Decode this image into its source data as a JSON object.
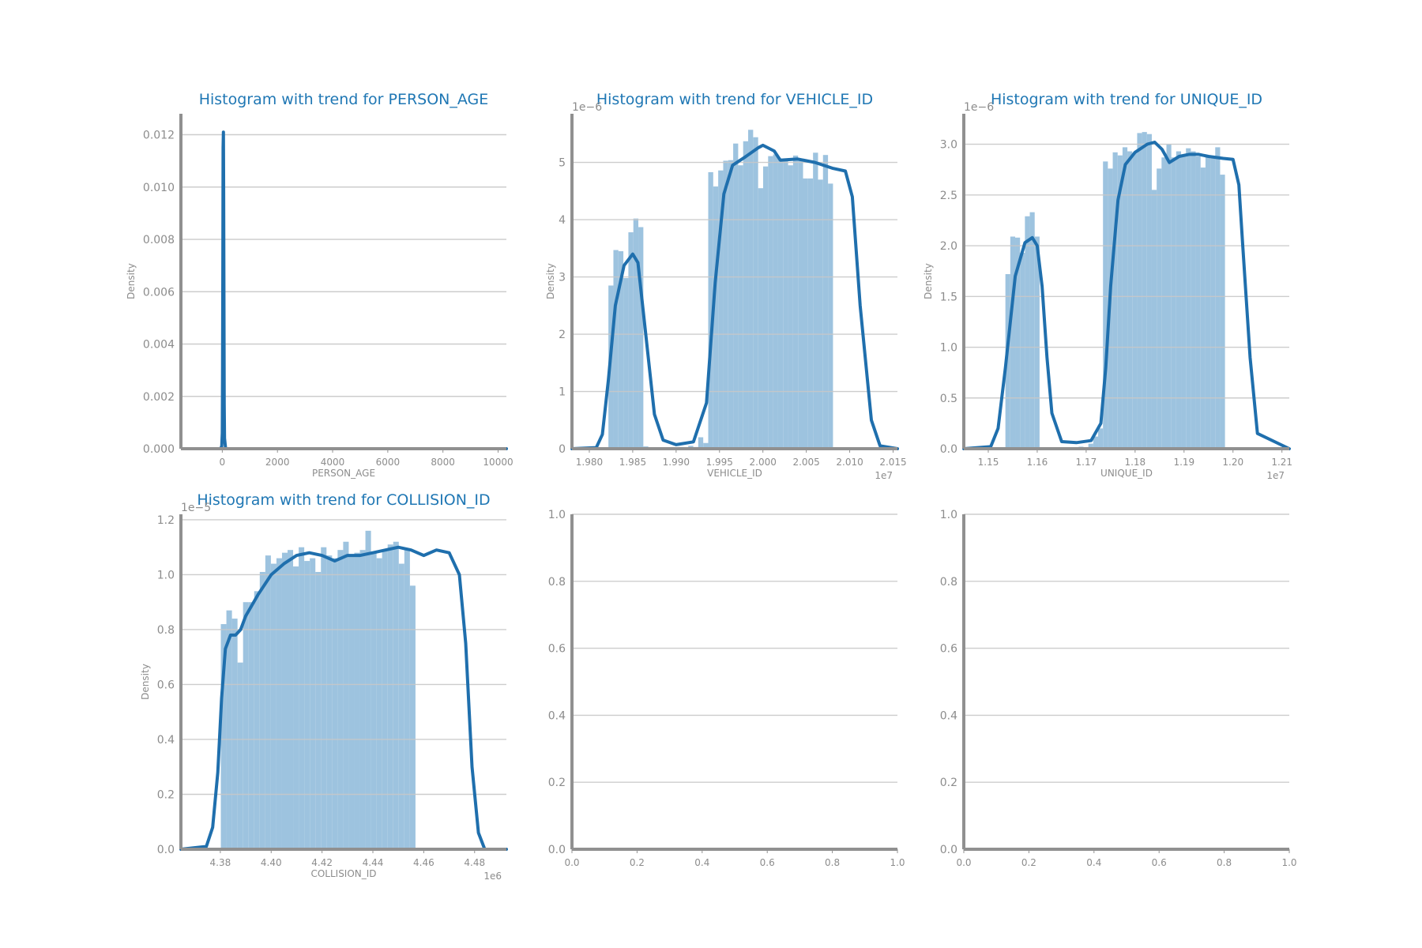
{
  "chart_data": [
    {
      "type": "histogram",
      "title": "Histogram with trend for PERSON_AGE",
      "xlabel": "PERSON_AGE",
      "ylabel": "Density",
      "xlim": [
        -1500,
        10300
      ],
      "ylim": [
        0,
        0.0128
      ],
      "xticks": [
        0,
        2000,
        4000,
        6000,
        8000,
        10000
      ],
      "xtick_labels": [
        "0",
        "2000",
        "4000",
        "6000",
        "8000",
        "10000"
      ],
      "yticks": [
        0,
        0.002,
        0.004,
        0.006,
        0.008,
        0.01,
        0.012
      ],
      "ytick_labels": [
        "0.000",
        "0.002",
        "0.004",
        "0.006",
        "0.008",
        "0.010",
        "0.012"
      ],
      "x_offset": "",
      "y_offset": "",
      "grid": true,
      "hist": {
        "start": -40,
        "bin_width": 35,
        "values": [
          0.0045,
          0.0035
        ]
      },
      "kde": {
        "x": [
          -300,
          -60,
          -20,
          0,
          10,
          20,
          30,
          40,
          50,
          60,
          70,
          80,
          120,
          250,
          10300
        ],
        "y": [
          0,
          0,
          0.0001,
          0.0006,
          0.0026,
          0.0071,
          0.0115,
          0.0121,
          0.0098,
          0.0052,
          0.0017,
          0.0004,
          0,
          0,
          0
        ]
      }
    },
    {
      "type": "histogram",
      "title": "Histogram with trend for VEHICLE_ID",
      "xlabel": "VEHICLE_ID",
      "ylabel": "Density",
      "xlim": [
        1.978,
        2.0155
      ],
      "ylim": [
        0,
        5.85
      ],
      "xticks": [
        1.98,
        1.985,
        1.99,
        1.995,
        2.0,
        2.005,
        2.01,
        2.015
      ],
      "xtick_labels": [
        "1.980",
        "1.985",
        "1.990",
        "1.995",
        "2.000",
        "2.005",
        "2.010",
        "2.015"
      ],
      "yticks": [
        0,
        1,
        2,
        3,
        4,
        5
      ],
      "ytick_labels": [
        "0",
        "1",
        "2",
        "3",
        "4",
        "5"
      ],
      "x_offset": "1e7",
      "y_offset": "1e−6",
      "grid": true,
      "hist": {
        "start": 1.9822,
        "bin_width": 0.000575,
        "values": [
          2.85,
          3.47,
          3.45,
          2.98,
          3.78,
          4.02,
          3.87,
          0.04,
          0.02,
          0.01,
          0.02,
          0.02,
          0.02,
          0.02,
          0.03,
          0.02,
          0.05,
          0.03,
          0.2,
          0.1,
          4.83,
          4.58,
          4.86,
          5.03,
          5.04,
          5.33,
          4.95,
          5.37,
          5.57,
          5.44,
          4.55,
          4.93,
          5.11,
          5.14,
          5.05,
          5.03,
          4.95,
          5.12,
          5.06,
          4.72,
          4.72,
          5.17,
          4.7,
          5.13,
          4.63
        ]
      },
      "kde": {
        "x": [
          1.978,
          1.9808,
          1.9815,
          1.9822,
          1.983,
          1.984,
          1.985,
          1.9856,
          1.9865,
          1.9875,
          1.9885,
          1.99,
          1.992,
          1.9935,
          1.9945,
          1.9955,
          1.9965,
          1.998,
          1.9995,
          2.0,
          2.0013,
          2.002,
          2.004,
          2.006,
          2.008,
          2.0095,
          2.0103,
          2.0112,
          2.0125,
          2.0135,
          2.0155
        ],
        "y": [
          0,
          0.02,
          0.25,
          1.2,
          2.5,
          3.2,
          3.4,
          3.25,
          2.0,
          0.6,
          0.15,
          0.07,
          0.12,
          0.8,
          2.9,
          4.45,
          4.95,
          5.1,
          5.26,
          5.3,
          5.2,
          5.04,
          5.06,
          5.0,
          4.9,
          4.85,
          4.4,
          2.5,
          0.5,
          0.05,
          0
        ]
      }
    },
    {
      "type": "histogram",
      "title": "Histogram with trend for UNIQUE_ID",
      "xlabel": "UNIQUE_ID",
      "ylabel": "Density",
      "xlim": [
        1.145,
        1.2115
      ],
      "ylim": [
        0,
        3.3
      ],
      "xticks": [
        1.15,
        1.16,
        1.17,
        1.18,
        1.19,
        1.2,
        1.21
      ],
      "xtick_labels": [
        "1.15",
        "1.16",
        "1.17",
        "1.18",
        "1.19",
        "1.20",
        "1.21"
      ],
      "yticks": [
        0,
        0.5,
        1.0,
        1.5,
        2.0,
        2.5,
        3.0
      ],
      "ytick_labels": [
        "0.0",
        "0.5",
        "1.0",
        "1.5",
        "2.0",
        "2.5",
        "3.0"
      ],
      "x_offset": "1e7",
      "y_offset": "1e−6",
      "grid": true,
      "hist": {
        "start": 1.1535,
        "bin_width": 0.000997,
        "values": [
          1.72,
          2.09,
          2.08,
          1.93,
          2.29,
          2.33,
          2.09,
          0.01,
          0.01,
          0.01,
          0.01,
          0.01,
          0.01,
          0.01,
          0.01,
          0.02,
          0.01,
          0.05,
          0.12,
          0.2,
          2.83,
          2.76,
          2.92,
          2.89,
          2.97,
          2.93,
          2.91,
          3.11,
          3.12,
          3.1,
          2.55,
          2.76,
          2.87,
          3.0,
          2.87,
          2.93,
          2.88,
          2.96,
          2.93,
          2.88,
          2.77,
          2.89,
          2.86,
          2.97,
          2.7
        ]
      },
      "kde": {
        "x": [
          1.145,
          1.1505,
          1.152,
          1.1535,
          1.1555,
          1.1575,
          1.159,
          1.16,
          1.161,
          1.162,
          1.163,
          1.165,
          1.168,
          1.171,
          1.173,
          1.174,
          1.175,
          1.1765,
          1.178,
          1.18,
          1.1825,
          1.184,
          1.1855,
          1.187,
          1.189,
          1.191,
          1.193,
          1.195,
          1.198,
          1.2,
          1.2012,
          1.202,
          1.2035,
          1.205,
          1.2115
        ],
        "y": [
          0,
          0.02,
          0.2,
          0.8,
          1.7,
          2.03,
          2.08,
          2.0,
          1.6,
          0.9,
          0.35,
          0.07,
          0.06,
          0.08,
          0.25,
          0.8,
          1.6,
          2.45,
          2.8,
          2.92,
          3.0,
          3.02,
          2.95,
          2.82,
          2.88,
          2.9,
          2.9,
          2.88,
          2.86,
          2.85,
          2.6,
          2.0,
          0.9,
          0.15,
          0
        ]
      }
    },
    {
      "type": "histogram",
      "title": "Histogram with trend for COLLISION_ID",
      "xlabel": "COLLISION_ID",
      "ylabel": "Density",
      "xlim": [
        4.3645,
        4.4925
      ],
      "ylim": [
        0,
        1.22
      ],
      "xticks": [
        4.38,
        4.4,
        4.42,
        4.44,
        4.46,
        4.48
      ],
      "xtick_labels": [
        "4.38",
        "4.40",
        "4.42",
        "4.44",
        "4.46",
        "4.48"
      ],
      "yticks": [
        0,
        0.2,
        0.4,
        0.6,
        0.8,
        1.0,
        1.2
      ],
      "ytick_labels": [
        "0.0",
        "0.2",
        "0.4",
        "0.6",
        "0.8",
        "1.0",
        "1.2"
      ],
      "x_offset": "1e6",
      "y_offset": "1e−5",
      "grid": true,
      "hist": {
        "start": 4.3802,
        "bin_width": 0.002187,
        "values": [
          0.82,
          0.87,
          0.84,
          0.68,
          0.9,
          0.9,
          0.94,
          1.01,
          1.07,
          1.04,
          1.06,
          1.08,
          1.09,
          1.03,
          1.1,
          1.05,
          1.06,
          1.01,
          1.1,
          1.07,
          1.06,
          1.09,
          1.12,
          1.07,
          1.08,
          1.09,
          1.16,
          1.08,
          1.06,
          1.09,
          1.11,
          1.12,
          1.04,
          1.09,
          0.96
        ]
      },
      "kde": {
        "x": [
          4.3645,
          4.3745,
          4.377,
          4.379,
          4.3805,
          4.382,
          4.384,
          4.386,
          4.388,
          4.39,
          4.395,
          4.4,
          4.405,
          4.41,
          4.415,
          4.42,
          4.425,
          4.43,
          4.435,
          4.44,
          4.445,
          4.45,
          4.455,
          4.46,
          4.465,
          4.47,
          4.474,
          4.4765,
          4.479,
          4.4815,
          4.484,
          4.4925
        ],
        "y": [
          0,
          0.01,
          0.08,
          0.28,
          0.55,
          0.73,
          0.78,
          0.78,
          0.8,
          0.85,
          0.93,
          1.0,
          1.04,
          1.07,
          1.08,
          1.07,
          1.05,
          1.07,
          1.07,
          1.08,
          1.09,
          1.1,
          1.09,
          1.07,
          1.09,
          1.08,
          1.0,
          0.75,
          0.3,
          0.06,
          0,
          0
        ]
      }
    },
    {
      "type": "empty",
      "title": "",
      "xlabel": "",
      "ylabel": "",
      "xlim": [
        0,
        1
      ],
      "ylim": [
        0,
        1
      ],
      "xticks": [
        0,
        0.2,
        0.4,
        0.6,
        0.8,
        1.0
      ],
      "xtick_labels": [
        "0.0",
        "0.2",
        "0.4",
        "0.6",
        "0.8",
        "1.0"
      ],
      "yticks": [
        0,
        0.2,
        0.4,
        0.6,
        0.8,
        1.0
      ],
      "ytick_labels": [
        "0.0",
        "0.2",
        "0.4",
        "0.6",
        "0.8",
        "1.0"
      ],
      "x_offset": "",
      "y_offset": "",
      "grid": true
    },
    {
      "type": "empty",
      "title": "",
      "xlabel": "",
      "ylabel": "",
      "xlim": [
        0,
        1
      ],
      "ylim": [
        0,
        1
      ],
      "xticks": [
        0,
        0.2,
        0.4,
        0.6,
        0.8,
        1.0
      ],
      "xtick_labels": [
        "0.0",
        "0.2",
        "0.4",
        "0.6",
        "0.8",
        "1.0"
      ],
      "yticks": [
        0,
        0.2,
        0.4,
        0.6,
        0.8,
        1.0
      ],
      "ytick_labels": [
        "0.0",
        "0.2",
        "0.4",
        "0.6",
        "0.8",
        "1.0"
      ],
      "x_offset": "",
      "y_offset": "",
      "grid": true
    }
  ],
  "colors": {
    "title": "#1f77b4",
    "bars": "#9dc3df",
    "kde": "#1f6fad",
    "grid": "#c8c8c8",
    "axis": "#909090",
    "text": "#8c8c8c"
  }
}
